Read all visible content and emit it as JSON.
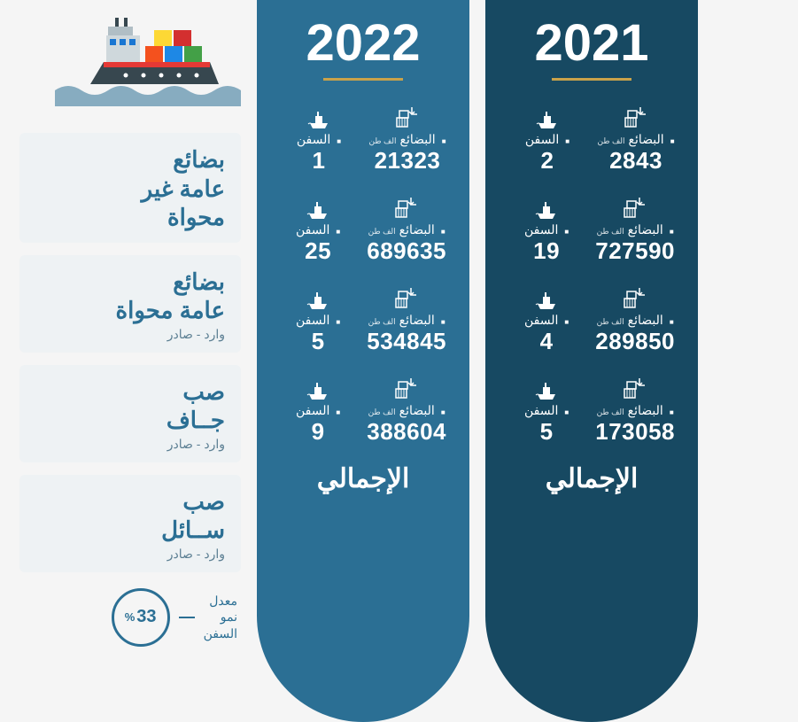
{
  "colors": {
    "col2022": "#2b6f94",
    "col2021": "#174962",
    "gold": "#c9a24a",
    "sideBoxBg": "#eef2f4",
    "text": "#ffffff"
  },
  "labels": {
    "goods": "البضائع",
    "goods_unit": "الف طن",
    "ships": "السفن",
    "total": "الإجمالي",
    "growth_label": "معدل\nنمو\nالسفن"
  },
  "years": {
    "y2022": "2022",
    "y2021": "2021"
  },
  "categories": [
    {
      "main": "بضائع\nعامة غير\nمحواة",
      "sub": ""
    },
    {
      "main": "بضائع\nعامة محواة",
      "sub": "وارد - صادر"
    },
    {
      "main": "صب\nجــاف",
      "sub": "وارد - صادر"
    },
    {
      "main": "صب\nســائل",
      "sub": "وارد - صادر"
    }
  ],
  "data2022": [
    {
      "ships": "1",
      "goods": "21323"
    },
    {
      "ships": "25",
      "goods": "689635"
    },
    {
      "ships": "5",
      "goods": "534845"
    },
    {
      "ships": "9",
      "goods": "388604"
    }
  ],
  "data2021": [
    {
      "ships": "2",
      "goods": "2843"
    },
    {
      "ships": "19",
      "goods": "727590"
    },
    {
      "ships": "4",
      "goods": "289850"
    },
    {
      "ships": "5",
      "goods": "173058"
    }
  ],
  "growth_pct": "33"
}
